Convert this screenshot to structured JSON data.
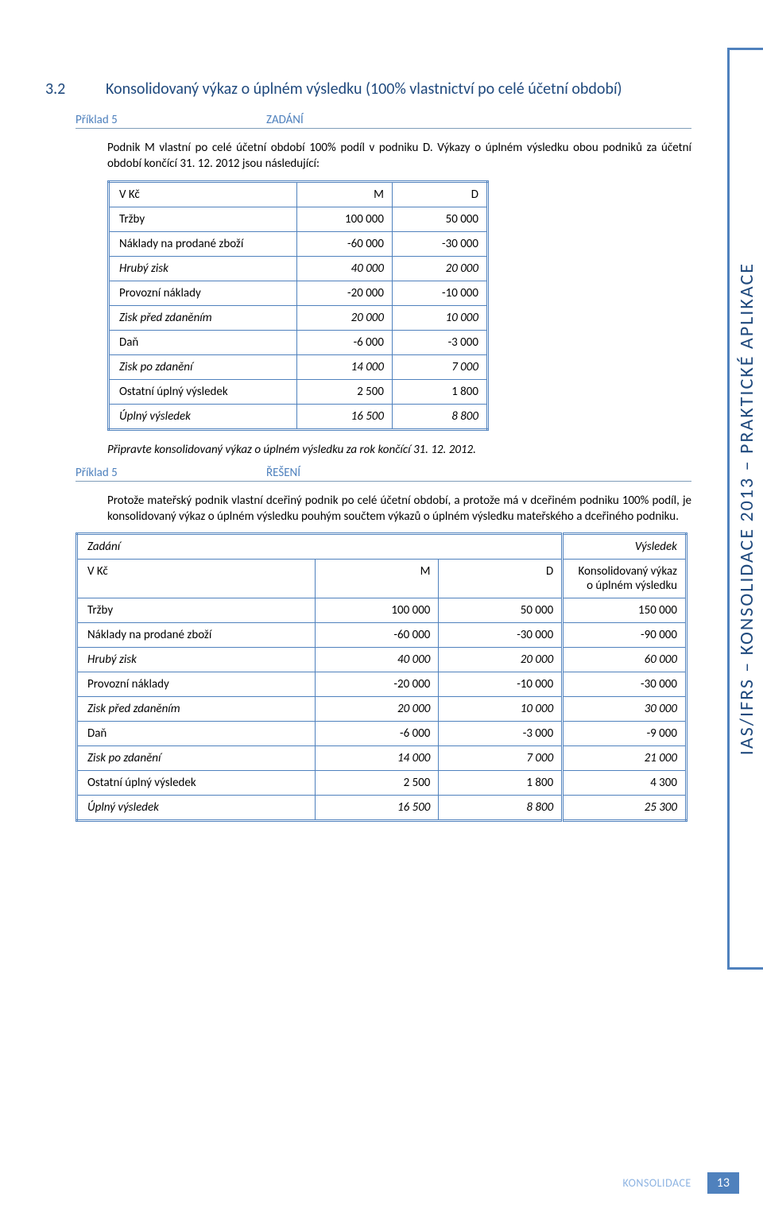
{
  "sideTab": "IAS/IFRS – KONSOLIDACE 2013 – PRAKTICKÉ APLIKACE",
  "sectionNumber": "3.2",
  "sectionTitle": "Konsolidovaný výkaz o úplném výsledku (100% vlastnictví po celé účetní období)",
  "ex5a": {
    "label": "Příklad 5",
    "type": "ZADÁNÍ"
  },
  "intro": "Podnik M vlastní po celé účetní období 100% podíl v podniku D. Výkazy o úplném výsledku obou podniků za účetní období končící 31. 12. 2012 jsou následující:",
  "t1": {
    "h1": "V Kč",
    "h2": "M",
    "h3": "D",
    "rows": [
      {
        "label": "Tržby",
        "m": "100 000",
        "d": "50 000",
        "italic": false
      },
      {
        "label": "Náklady na prodané zboží",
        "m": "-60 000",
        "d": "-30 000",
        "italic": false
      },
      {
        "label": "Hrubý zisk",
        "m": "40 000",
        "d": "20 000",
        "italic": true
      },
      {
        "label": "Provozní náklady",
        "m": "-20 000",
        "d": "-10 000",
        "italic": false
      },
      {
        "label": "Zisk před zdaněním",
        "m": "20 000",
        "d": "10 000",
        "italic": true
      },
      {
        "label": "Daň",
        "m": "-6 000",
        "d": "-3 000",
        "italic": false
      },
      {
        "label": "Zisk po zdanění",
        "m": "14 000",
        "d": "7 000",
        "italic": true
      },
      {
        "label": "Ostatní úplný výsledek",
        "m": "2 500",
        "d": "1 800",
        "italic": false
      },
      {
        "label": "Úplný výsledek",
        "m": "16 500",
        "d": "8 800",
        "italic": true
      }
    ]
  },
  "task": "Připravte konsolidovaný výkaz o úplném výsledku za rok končící 31. 12. 2012.",
  "ex5b": {
    "label": "Příklad 5",
    "type": "ŘEŠENÍ"
  },
  "solution": "Protože mateřský podnik vlastní dceřiný podnik po celé účetní období, a protože má v dceřiném podniku 100% podíl, je konsolidovaný výkaz o úplném výsledku pouhým součtem výkazů o úplném výsledku mateřského a dceřiného podniku.",
  "t2": {
    "hL": "Zadání",
    "hR": "Výsledek",
    "h1": "V Kč",
    "h2": "M",
    "h3": "D",
    "h4": "Konsolidovaný výkaz o úplném výsledku",
    "rows": [
      {
        "label": "Tržby",
        "m": "100 000",
        "d": "50 000",
        "k": "150 000",
        "italic": false
      },
      {
        "label": "Náklady na prodané zboží",
        "m": "-60 000",
        "d": "-30 000",
        "k": "-90 000",
        "italic": false
      },
      {
        "label": "Hrubý zisk",
        "m": "40 000",
        "d": "20 000",
        "k": "60 000",
        "italic": true
      },
      {
        "label": "Provozní náklady",
        "m": "-20 000",
        "d": "-10 000",
        "k": "-30 000",
        "italic": false
      },
      {
        "label": "Zisk před zdaněním",
        "m": "20 000",
        "d": "10 000",
        "k": "30 000",
        "italic": true
      },
      {
        "label": "Daň",
        "m": "-6 000",
        "d": "-3 000",
        "k": "-9 000",
        "italic": false
      },
      {
        "label": "Zisk po zdanění",
        "m": "14 000",
        "d": "7 000",
        "k": "21 000",
        "italic": true
      },
      {
        "label": "Ostatní úplný výsledek",
        "m": "2 500",
        "d": "1 800",
        "k": "4 300",
        "italic": false
      },
      {
        "label": "Úplný výsledek",
        "m": "16 500",
        "d": "8 800",
        "k": "25 300",
        "italic": true
      }
    ]
  },
  "footer": {
    "label": "KONSOLIDACE",
    "page": "13"
  }
}
